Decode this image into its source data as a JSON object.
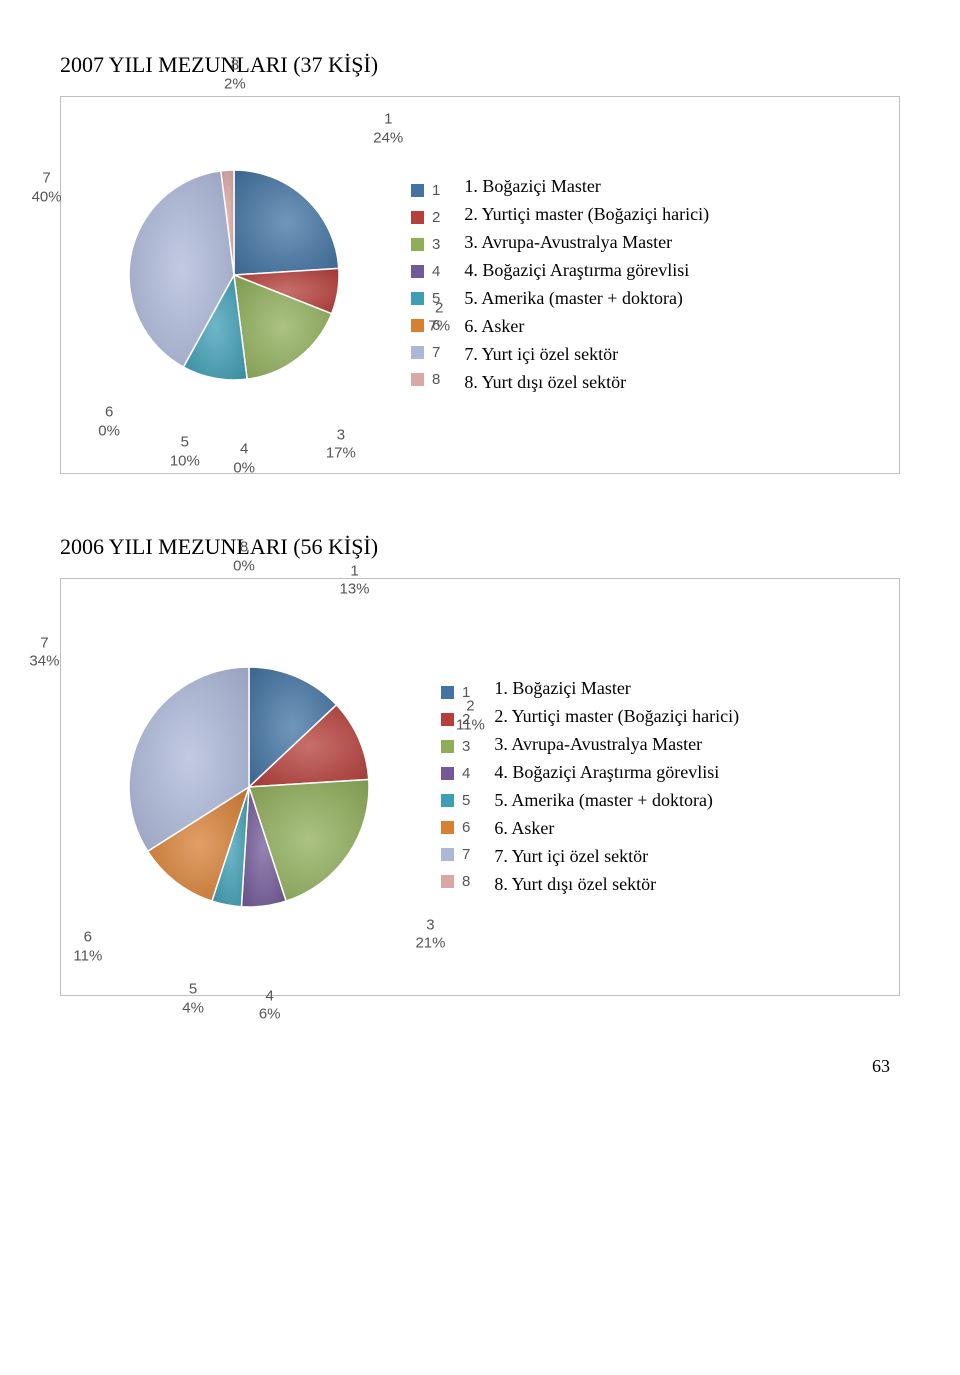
{
  "page_number": "63",
  "palette": {
    "1": "#4273a3",
    "2": "#b63f3a",
    "3": "#8fae5a",
    "4": "#725997",
    "5": "#3e9eb4",
    "6": "#d77f33",
    "7": "#adb8d9",
    "8": "#d9a7a4"
  },
  "chart1": {
    "title": "2007 YILI MEZUNLARI  (37 KİŞİ)",
    "type": "pie",
    "border_color": "#bfbfbf",
    "bg": "#ffffff",
    "data_labels": {
      "1": "1\n24%",
      "2": "2\n7%",
      "3": "3\n17%",
      "4": "4\n0%",
      "5": "5\n10%",
      "6": "6\n0%",
      "7": "7\n40%",
      "8": "8\n2%"
    },
    "legend_labels": {
      "1": "1",
      "2": "2",
      "3": "3",
      "4": "4",
      "5": "5",
      "6": "6",
      "7": "7",
      "8": "8"
    },
    "values": {
      "1": 24,
      "2": 7,
      "3": 17,
      "4": 0,
      "5": 10,
      "6": 0,
      "7": 40,
      "8": 2
    },
    "key": [
      "1. Boğaziçi Master",
      "2. Yurtiçi master (Boğaziçi harici)",
      "3. Avrupa-Avustralya Master",
      "4. Boğaziçi Araştırma görevlisi",
      "5. Amerika (master + doktora)",
      "6. Asker",
      "7. Yurt içi özel sektör",
      "8. Yurt dışı özel sektör"
    ]
  },
  "chart2": {
    "title": "2006 YILI MEZUNLARI  (56 KİŞİ)",
    "type": "pie",
    "border_color": "#bfbfbf",
    "bg": "#ffffff",
    "data_labels": {
      "1": "1\n13%",
      "2": "2\n11%",
      "3": "3\n21%",
      "4": "4\n6%",
      "5": "5\n4%",
      "6": "6\n11%",
      "7": "7\n34%",
      "8": "8\n0%"
    },
    "legend_labels": {
      "1": "1",
      "2": "2",
      "3": "3",
      "4": "4",
      "5": "5",
      "6": "6",
      "7": "7",
      "8": "8"
    },
    "values": {
      "1": 13,
      "2": 11,
      "3": 21,
      "4": 6,
      "5": 4,
      "6": 11,
      "7": 34,
      "8": 0
    },
    "key": [
      "1. Boğaziçi Master",
      "2. Yurtiçi master (Boğaziçi harici)",
      "3. Avrupa-Avustralya Master",
      "4. Boğaziçi Araştırma görevlisi",
      "5. Amerika (master + doktora)",
      "6. Asker",
      "7. Yurt içi özel sektör",
      "8. Yurt dışı özel sektör"
    ]
  }
}
